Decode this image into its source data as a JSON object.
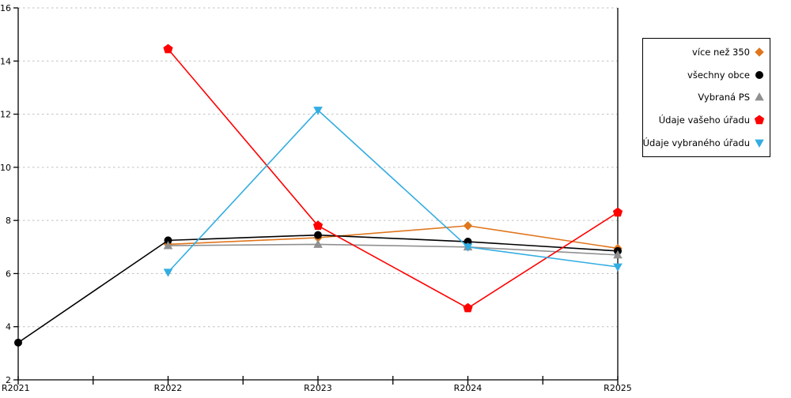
{
  "chart_data": {
    "type": "line",
    "title": "",
    "xlabel": "",
    "ylabel": "",
    "categories": [
      "R2021",
      "R2022",
      "R2023",
      "R2024",
      "R2025"
    ],
    "y_ticks": [
      2,
      4,
      6,
      8,
      10,
      12,
      14,
      16
    ],
    "ylim": [
      2,
      16
    ],
    "grid": "horizontal-dashed",
    "legend_position": "right-outside-top",
    "series": [
      {
        "name": "více než 350",
        "color": "#E0751C",
        "marker": "diamond",
        "values": [
          null,
          7.1,
          7.35,
          7.8,
          6.95
        ]
      },
      {
        "name": "všechny obce",
        "color": "#000000",
        "marker": "circle",
        "values": [
          3.4,
          7.25,
          7.45,
          7.2,
          6.85
        ]
      },
      {
        "name": "Vybraná PS",
        "color": "#909090",
        "marker": "triangle-up",
        "values": [
          null,
          7.05,
          7.1,
          7.0,
          6.7
        ]
      },
      {
        "name": "Údaje vašeho úřadu",
        "color": "#FE0000",
        "marker": "pentagon",
        "values": [
          null,
          14.45,
          7.8,
          4.7,
          8.3
        ]
      },
      {
        "name": "Údaje vybraného úřadu",
        "color": "#33ADE1",
        "marker": "triangle-down",
        "values": [
          null,
          6.05,
          12.15,
          7.0,
          6.25
        ]
      }
    ],
    "colors": {
      "axis": "#000000",
      "gridline": "#bfbfbf",
      "background": "#ffffff"
    }
  }
}
